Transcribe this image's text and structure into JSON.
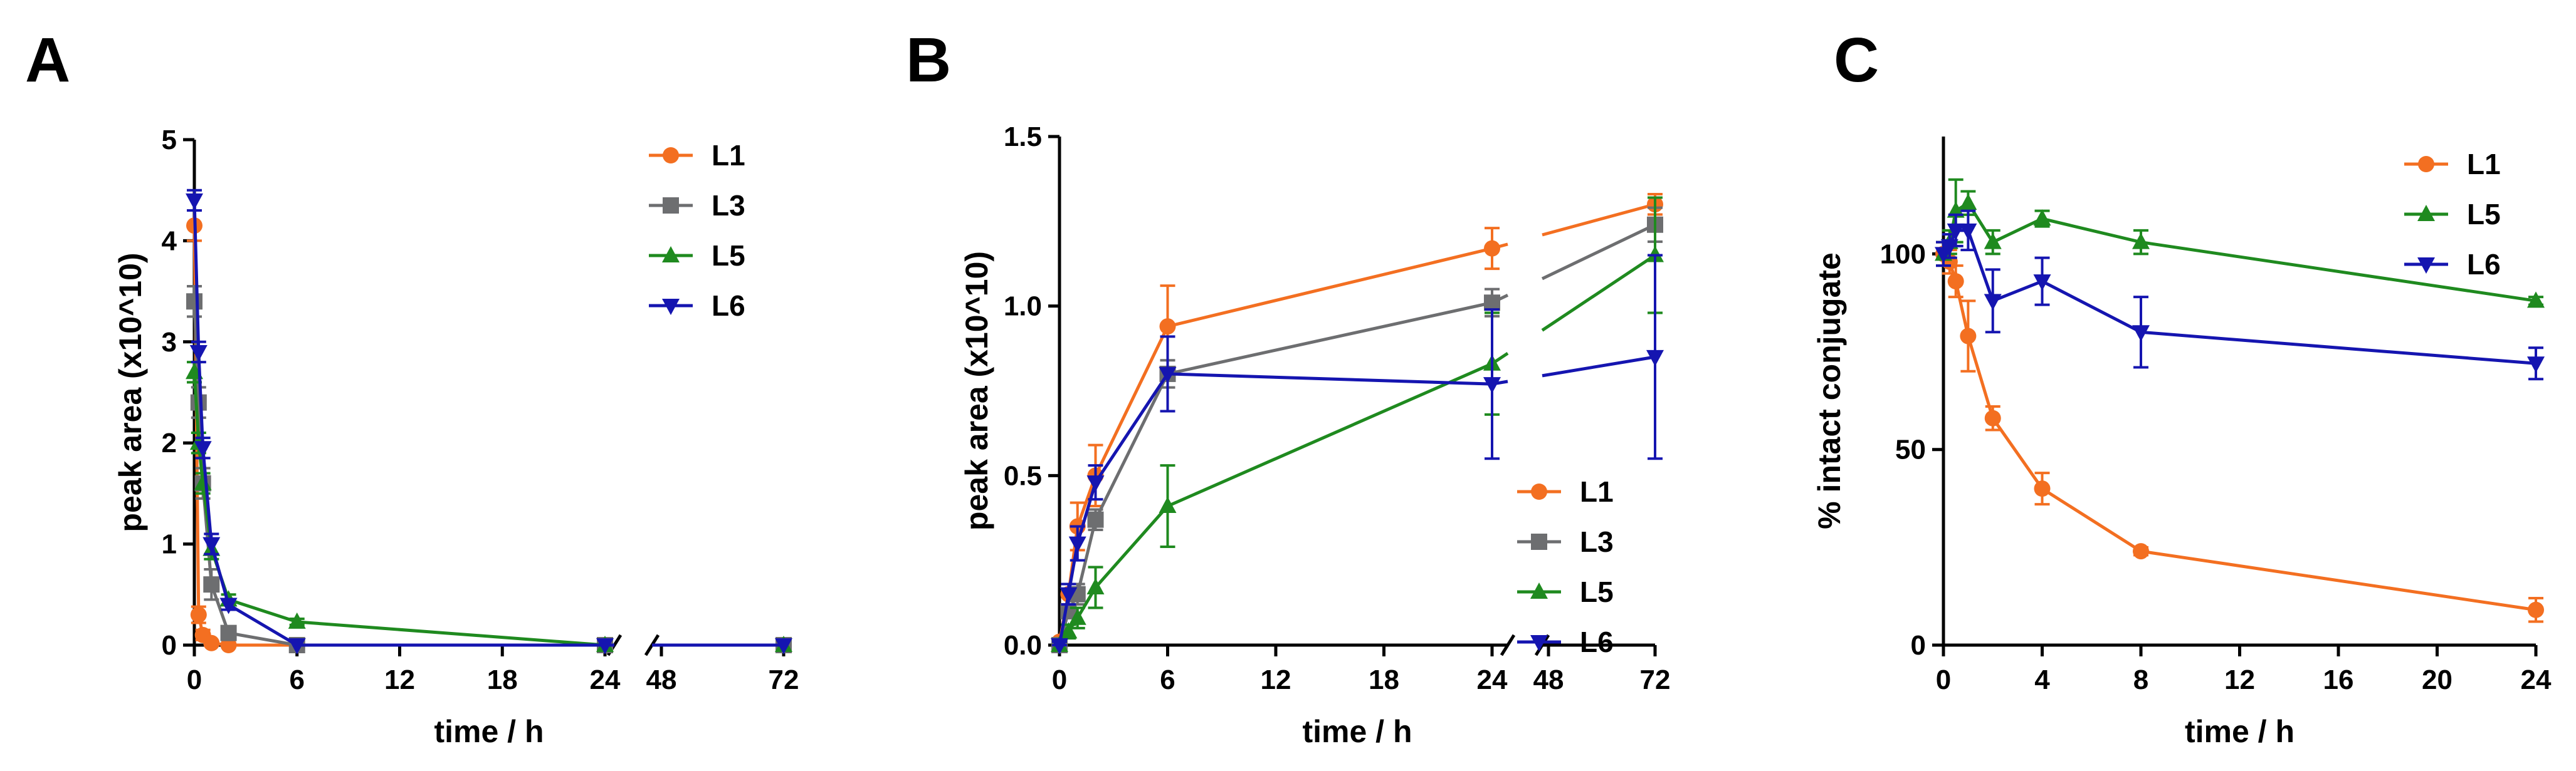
{
  "series_styles": {
    "L1": {
      "color": "#f36f21",
      "marker": "circle"
    },
    "L3": {
      "color": "#6d6e70",
      "marker": "square"
    },
    "L5": {
      "color": "#1f8a1f",
      "marker": "triangle-up"
    },
    "L6": {
      "color": "#1515b0",
      "marker": "triangle-down"
    }
  },
  "chart_data": [
    {
      "panel": "A",
      "type": "line",
      "title": "",
      "xlabel": "time / h",
      "ylabel": "peak area (x10^10)",
      "xaxis_break": "between 24 and 48 h",
      "ylim": [
        0,
        5
      ],
      "xticks": [
        "0",
        "6",
        "12",
        "18",
        "24",
        "48",
        "72"
      ],
      "yticks": [
        "0",
        "1",
        "2",
        "3",
        "4",
        "5"
      ],
      "legend": [
        "L1",
        "L3",
        "L5",
        "L6"
      ],
      "legend_position": "top-right",
      "series": [
        {
          "name": "L1",
          "x": [
            0,
            0.25,
            0.5,
            1,
            2,
            6,
            24,
            72
          ],
          "y": [
            4.15,
            0.3,
            0.1,
            0.02,
            0.0,
            0.0,
            0.0,
            0.0
          ],
          "err": [
            0.15,
            0.08,
            0.05,
            0.01,
            0,
            0,
            0,
            0
          ]
        },
        {
          "name": "L3",
          "x": [
            0,
            0.25,
            0.5,
            1,
            2,
            6,
            24,
            72
          ],
          "y": [
            3.4,
            2.4,
            1.6,
            0.6,
            0.12,
            0.0,
            0.0,
            0.0
          ],
          "err": [
            0.15,
            0.15,
            0.15,
            0.15,
            0.05,
            0,
            0,
            0
          ]
        },
        {
          "name": "L5",
          "x": [
            0,
            0.25,
            0.5,
            1,
            2,
            6,
            24,
            72
          ],
          "y": [
            2.7,
            2.0,
            1.6,
            0.95,
            0.45,
            0.23,
            0.0,
            0.0
          ],
          "err": [
            0.1,
            0.1,
            0.1,
            0.1,
            0.05,
            0.03,
            0,
            0
          ]
        },
        {
          "name": "L6",
          "x": [
            0,
            0.25,
            0.5,
            1,
            2,
            6,
            24,
            72
          ],
          "y": [
            4.4,
            2.9,
            1.95,
            1.0,
            0.4,
            0.0,
            0.0,
            0.0
          ],
          "err": [
            0.1,
            0.1,
            0.1,
            0.1,
            0.05,
            0,
            0,
            0
          ]
        }
      ]
    },
    {
      "panel": "B",
      "type": "line",
      "title": "",
      "xlabel": "time / h",
      "ylabel": "peak area (x10^10)",
      "xaxis_break": "between 24 and 48 h",
      "ylim": [
        0,
        1.5
      ],
      "xticks": [
        "0",
        "6",
        "12",
        "18",
        "24",
        "48",
        "72"
      ],
      "yticks": [
        "0.0",
        "0.5",
        "1.0",
        "1.5"
      ],
      "legend": [
        "L1",
        "L3",
        "L5",
        "L6"
      ],
      "legend_position": "bottom-right",
      "series": [
        {
          "name": "L1",
          "x": [
            0,
            0.5,
            1,
            2,
            6,
            24,
            72
          ],
          "y": [
            0.01,
            0.15,
            0.35,
            0.5,
            0.94,
            1.17,
            1.3
          ],
          "err": [
            0.01,
            0.03,
            0.07,
            0.09,
            0.12,
            0.06,
            0.03
          ]
        },
        {
          "name": "L3",
          "x": [
            0,
            0.5,
            1,
            2,
            6,
            24,
            72
          ],
          "y": [
            0.0,
            0.1,
            0.15,
            0.37,
            0.8,
            1.01,
            1.24
          ],
          "err": [
            0.01,
            0.02,
            0.03,
            0.03,
            0.04,
            0.04,
            0.05
          ]
        },
        {
          "name": "L5",
          "x": [
            0,
            0.5,
            1,
            2,
            6,
            24,
            72
          ],
          "y": [
            0.0,
            0.04,
            0.08,
            0.17,
            0.41,
            0.83,
            1.15
          ],
          "err": [
            0.01,
            0.02,
            0.03,
            0.06,
            0.12,
            0.15,
            0.17
          ]
        },
        {
          "name": "L6",
          "x": [
            0,
            0.5,
            1,
            2,
            6,
            24,
            72
          ],
          "y": [
            0.0,
            0.15,
            0.3,
            0.48,
            0.8,
            0.77,
            0.85
          ],
          "err": [
            0.01,
            0.03,
            0.05,
            0.05,
            0.11,
            0.22,
            0.3
          ]
        }
      ]
    },
    {
      "panel": "C",
      "type": "line",
      "title": "",
      "xlabel": "time / h",
      "ylabel": "% intact conjugate",
      "xlim": [
        0,
        24
      ],
      "ylim": [
        0,
        130
      ],
      "xticks": [
        "0",
        "4",
        "8",
        "12",
        "16",
        "20",
        "24"
      ],
      "yticks": [
        "0",
        "50",
        "100"
      ],
      "legend": [
        "L1",
        "L5",
        "L6"
      ],
      "legend_position": "top-right",
      "series": [
        {
          "name": "L1",
          "x": [
            0,
            0.25,
            0.5,
            1,
            2,
            4,
            8,
            24
          ],
          "y": [
            100,
            98,
            93,
            79,
            58,
            40,
            24,
            9
          ],
          "err": [
            3,
            3,
            4,
            9,
            3,
            4,
            1,
            3
          ]
        },
        {
          "name": "L5",
          "x": [
            0,
            0.25,
            0.5,
            1,
            2,
            4,
            8,
            24
          ],
          "y": [
            100,
            103,
            111,
            113,
            103,
            109,
            103,
            88
          ],
          "err": [
            3,
            3,
            8,
            3,
            3,
            2,
            3,
            1
          ]
        },
        {
          "name": "L6",
          "x": [
            0,
            0.25,
            0.5,
            1,
            2,
            4,
            8,
            24
          ],
          "y": [
            100,
            102,
            106,
            106,
            88,
            93,
            80,
            72
          ],
          "err": [
            3,
            3,
            4,
            5,
            8,
            6,
            9,
            4
          ]
        }
      ]
    }
  ]
}
